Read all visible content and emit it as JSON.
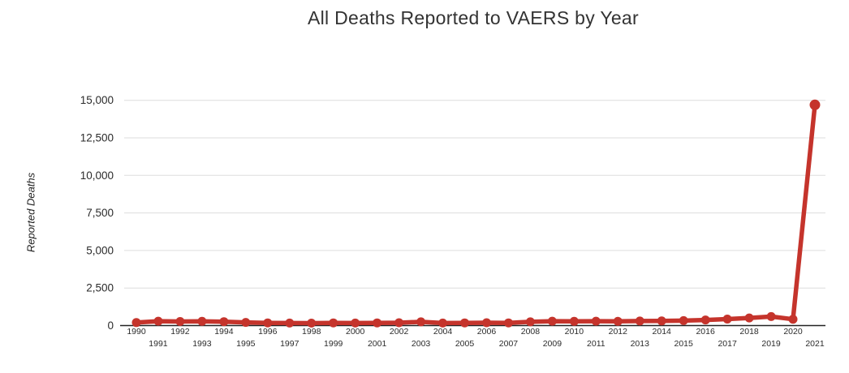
{
  "theme": {
    "background": "#ffffff",
    "line_color": "#c5342c",
    "grid_color": "#dddddd",
    "axis_color": "#222222",
    "title_color": "#333333",
    "tick_label_color": "#2b2b2b"
  },
  "chart_data": {
    "type": "line",
    "title": "All Deaths Reported to VAERS by Year",
    "ylabel": "Reported Deaths",
    "xlabel": "",
    "x": [
      1990,
      1991,
      1992,
      1993,
      1994,
      1995,
      1996,
      1997,
      1998,
      1999,
      2000,
      2001,
      2002,
      2003,
      2004,
      2005,
      2006,
      2007,
      2008,
      2009,
      2010,
      2011,
      2012,
      2013,
      2014,
      2015,
      2016,
      2017,
      2018,
      2019,
      2020,
      2021
    ],
    "series": [
      {
        "name": "Reported Deaths",
        "color": "#c5342c",
        "values": [
          200,
          290,
          270,
          280,
          260,
          210,
          180,
          170,
          160,
          180,
          170,
          180,
          190,
          250,
          170,
          180,
          190,
          180,
          250,
          290,
          280,
          290,
          280,
          300,
          310,
          330,
          370,
          430,
          510,
          600,
          420,
          14700
        ]
      }
    ],
    "ylim": [
      0,
      15000
    ],
    "yticks": [
      0,
      2500,
      5000,
      7500,
      10000,
      12500,
      15000
    ],
    "ytick_labels": [
      "0",
      "2,500",
      "5,000",
      "7,500",
      "10,000",
      "12,500",
      "15,000"
    ],
    "grid": "horizontal",
    "legend": "none",
    "x_label_layout": "two-row-staggered",
    "marker": "circle"
  }
}
